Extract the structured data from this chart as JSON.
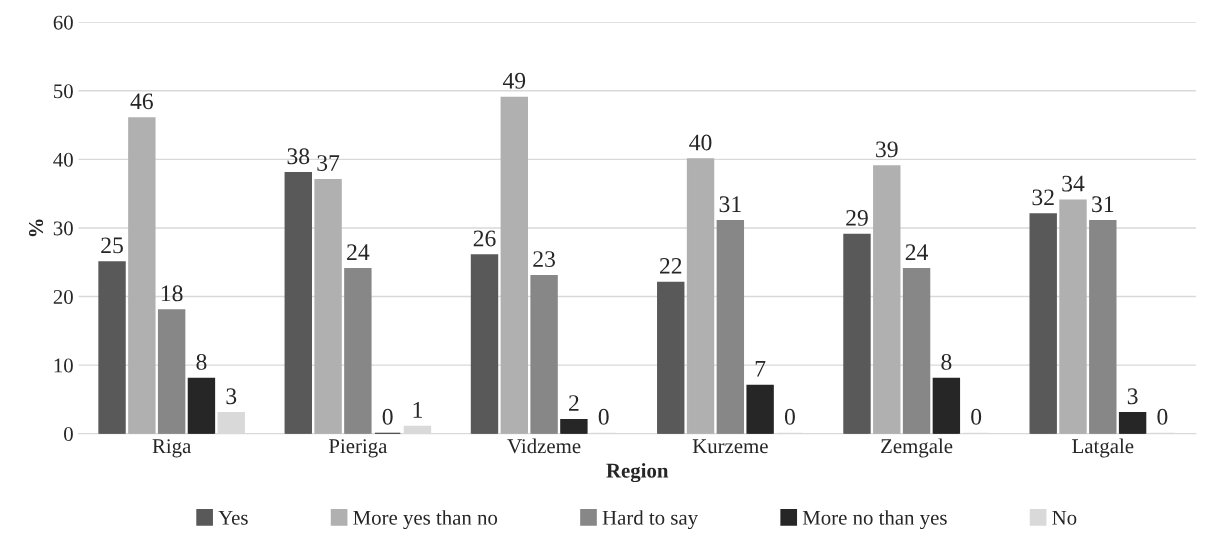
{
  "chart_data": {
    "type": "bar",
    "xlabel": "Region",
    "ylabel": "%",
    "categories": [
      "Riga",
      "Pieriga",
      "Vidzeme",
      "Kurzeme",
      "Zemgale",
      "Latgale"
    ],
    "series": [
      {
        "name": "Yes",
        "color": "#595959",
        "values": [
          25,
          38,
          26,
          22,
          29,
          32
        ]
      },
      {
        "name": "More yes than no",
        "color": "#b0b0b0",
        "values": [
          46,
          37,
          49,
          40,
          39,
          34
        ]
      },
      {
        "name": "Hard to say",
        "color": "#878787",
        "values": [
          18,
          24,
          23,
          31,
          24,
          31
        ]
      },
      {
        "name": "More no than yes",
        "color": "#262626",
        "values": [
          8,
          0,
          2,
          7,
          8,
          3
        ]
      },
      {
        "name": "No",
        "color": "#d9d9d9",
        "values": [
          3,
          1,
          0,
          0,
          0,
          0
        ]
      }
    ],
    "ylim": [
      0,
      60
    ],
    "yticks": [
      0,
      10,
      20,
      30,
      40,
      50,
      60
    ],
    "grid": "y",
    "legend": "bottom",
    "data_labels": true
  }
}
